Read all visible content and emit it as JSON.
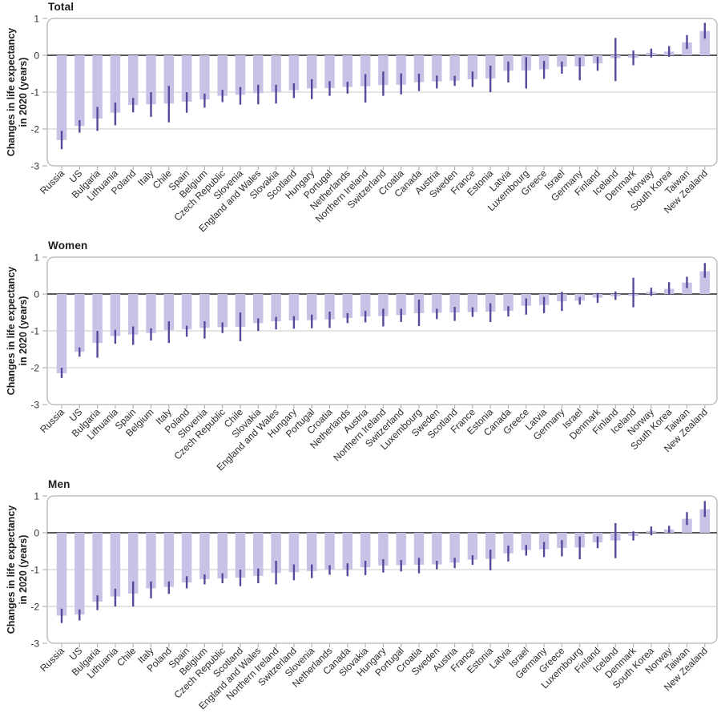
{
  "axis": {
    "ylabel": "Changes in life expectancy\nin 2020 (years)",
    "ytick_labels": [
      "1",
      "0",
      "-1",
      "-2",
      "-3"
    ],
    "ytick_values": [
      1,
      0,
      -1,
      -2,
      -3
    ],
    "ylim": [
      -3,
      1
    ]
  },
  "colors": {
    "bar": "#c8c3e6",
    "error_bar": "#544a9c",
    "zero_line": "#58585c",
    "gridline": "#cacaca",
    "frame": "#b4b4b4",
    "tick_text": "#333333",
    "label_text": "#2b2b2b",
    "title_text": "#1d1d1f",
    "background": "#ffffff"
  },
  "chart_data": [
    {
      "type": "bar",
      "title": "Total",
      "ylabel": "Changes in life expectancy in 2020 (years)",
      "ylim": [
        -3,
        1
      ],
      "grid": true,
      "legend": false,
      "categories": [
        "Russia",
        "US",
        "Bulgaria",
        "Lithuania",
        "Poland",
        "Italy",
        "Chile",
        "Spain",
        "Belgium",
        "Czech Republic",
        "Slovenia",
        "England and Wales",
        "Slovakia",
        "Scotland",
        "Hungary",
        "Portugal",
        "Netherlands",
        "Northern Ireland",
        "Switzerland",
        "Croatia",
        "Canada",
        "Austria",
        "Sweden",
        "France",
        "Estonia",
        "Latvia",
        "Luxembourg",
        "Greece",
        "Israel",
        "Germany",
        "Finland",
        "Iceland",
        "Denmark",
        "Norway",
        "South Korea",
        "Taiwan",
        "New Zealand"
      ],
      "values": [
        -2.3,
        -1.92,
        -1.72,
        -1.56,
        -1.35,
        -1.33,
        -1.31,
        -1.26,
        -1.2,
        -1.1,
        -1.07,
        -1.03,
        -1.0,
        -0.95,
        -0.9,
        -0.89,
        -0.86,
        -0.84,
        -0.81,
        -0.8,
        -0.73,
        -0.71,
        -0.69,
        -0.65,
        -0.63,
        -0.42,
        -0.41,
        -0.38,
        -0.31,
        -0.3,
        -0.22,
        -0.08,
        -0.07,
        0.07,
        0.1,
        0.35,
        0.66
      ],
      "ci_upper": [
        -2.05,
        -1.76,
        -1.4,
        -1.28,
        -1.16,
        -1.0,
        -0.83,
        -1.0,
        -1.04,
        -0.94,
        -0.86,
        -0.8,
        -0.8,
        -0.76,
        -0.65,
        -0.7,
        -0.72,
        -0.51,
        -0.44,
        -0.49,
        -0.5,
        -0.55,
        -0.56,
        -0.44,
        -0.28,
        -0.17,
        -0.05,
        -0.15,
        -0.17,
        -0.06,
        -0.04,
        0.47,
        0.13,
        0.18,
        0.25,
        0.55,
        0.88
      ],
      "ci_lower": [
        -2.55,
        -2.1,
        -2.05,
        -1.9,
        -1.55,
        -1.67,
        -1.82,
        -1.56,
        -1.42,
        -1.27,
        -1.34,
        -1.33,
        -1.31,
        -1.16,
        -1.19,
        -1.1,
        -1.04,
        -1.28,
        -1.1,
        -1.06,
        -0.97,
        -0.9,
        -0.83,
        -0.86,
        -1.0,
        -0.74,
        -0.9,
        -0.64,
        -0.5,
        -0.68,
        -0.42,
        -0.7,
        -0.27,
        -0.06,
        -0.04,
        0.17,
        0.45
      ]
    },
    {
      "type": "bar",
      "title": "Women",
      "ylabel": "Changes in life expectancy in 2020 (years)",
      "ylim": [
        -3,
        1
      ],
      "grid": true,
      "legend": false,
      "categories": [
        "Russia",
        "US",
        "Bulgaria",
        "Lithuania",
        "Spain",
        "Belgium",
        "Italy",
        "Poland",
        "Slovenia",
        "Czech Republic",
        "Chile",
        "Slovakia",
        "England and Wales",
        "Hungary",
        "Portugal",
        "Croatia",
        "Netherlands",
        "Austria",
        "Northern Ireland",
        "Switzerland",
        "Luxembourg",
        "Sweden",
        "Scotland",
        "France",
        "Estonia",
        "Canada",
        "Greece",
        "Latvia",
        "Germany",
        "Israel",
        "Denmark",
        "Finland",
        "Iceland",
        "Norway",
        "South Korea",
        "Taiwan",
        "New Zealand"
      ],
      "values": [
        -2.15,
        -1.57,
        -1.33,
        -1.14,
        -1.1,
        -1.06,
        -0.98,
        -0.96,
        -0.92,
        -0.9,
        -0.89,
        -0.79,
        -0.74,
        -0.72,
        -0.71,
        -0.69,
        -0.65,
        -0.61,
        -0.6,
        -0.57,
        -0.52,
        -0.51,
        -0.5,
        -0.49,
        -0.48,
        -0.46,
        -0.32,
        -0.3,
        -0.2,
        -0.18,
        -0.1,
        -0.06,
        -0.05,
        0.06,
        0.14,
        0.31,
        0.62
      ],
      "ci_upper": [
        -2.0,
        -1.45,
        -1.0,
        -0.97,
        -0.88,
        -0.93,
        -0.74,
        -0.86,
        -0.74,
        -0.77,
        -0.5,
        -0.66,
        -0.62,
        -0.6,
        -0.56,
        -0.48,
        -0.52,
        -0.46,
        -0.4,
        -0.4,
        -0.15,
        -0.4,
        -0.35,
        -0.36,
        -0.25,
        -0.33,
        -0.12,
        -0.08,
        0.06,
        -0.08,
        0.03,
        0.07,
        0.44,
        0.17,
        0.32,
        0.47,
        0.84
      ],
      "ci_lower": [
        -2.28,
        -1.7,
        -1.73,
        -1.35,
        -1.38,
        -1.26,
        -1.33,
        -1.16,
        -1.21,
        -1.06,
        -1.28,
        -1.0,
        -0.96,
        -0.94,
        -0.93,
        -0.92,
        -0.79,
        -0.77,
        -0.88,
        -0.76,
        -0.87,
        -0.68,
        -0.73,
        -0.62,
        -0.76,
        -0.61,
        -0.56,
        -0.52,
        -0.46,
        -0.29,
        -0.24,
        -0.16,
        -0.36,
        -0.05,
        -0.01,
        0.16,
        0.44
      ]
    },
    {
      "type": "bar",
      "title": "Men",
      "ylabel": "Changes in life expectancy in 2020 (years)",
      "ylim": [
        -3,
        1
      ],
      "grid": true,
      "legend": false,
      "categories": [
        "Russia",
        "US",
        "Bulgaria",
        "Lithuania",
        "Chile",
        "Italy",
        "Poland",
        "Spain",
        "Belgium",
        "Czech Republic",
        "Scotland",
        "England and Wales",
        "Northern Ireland",
        "Switzerland",
        "Slovenia",
        "Netherlands",
        "Canada",
        "Slovakia",
        "Hungary",
        "Portugal",
        "Croatia",
        "Sweden",
        "Austria",
        "France",
        "Estonia",
        "Latvia",
        "Israel",
        "Germany",
        "Greece",
        "Luxembourg",
        "Finland",
        "Iceland",
        "Denmark",
        "South Korea",
        "Norway",
        "Taiwan",
        "New Zealand"
      ],
      "values": [
        -2.25,
        -2.22,
        -1.87,
        -1.73,
        -1.65,
        -1.51,
        -1.47,
        -1.35,
        -1.26,
        -1.24,
        -1.22,
        -1.17,
        -1.09,
        -1.07,
        -1.04,
        -1.01,
        -1.0,
        -0.94,
        -0.89,
        -0.88,
        -0.87,
        -0.86,
        -0.81,
        -0.73,
        -0.71,
        -0.56,
        -0.47,
        -0.45,
        -0.41,
        -0.4,
        -0.26,
        -0.21,
        -0.09,
        0.05,
        0.09,
        0.38,
        0.64
      ],
      "ci_upper": [
        -2.06,
        -2.08,
        -1.7,
        -1.52,
        -1.32,
        -1.32,
        -1.32,
        -1.18,
        -1.13,
        -1.1,
        -1.0,
        -0.97,
        -0.76,
        -0.86,
        -0.86,
        -0.88,
        -0.83,
        -0.76,
        -0.72,
        -0.74,
        -0.68,
        -0.76,
        -0.68,
        -0.61,
        -0.46,
        -0.35,
        -0.33,
        -0.25,
        -0.2,
        -0.1,
        -0.1,
        0.26,
        0.04,
        0.17,
        0.19,
        0.56,
        0.86
      ],
      "ci_lower": [
        -2.45,
        -2.38,
        -2.1,
        -2.0,
        -2.0,
        -1.78,
        -1.66,
        -1.51,
        -1.4,
        -1.37,
        -1.45,
        -1.37,
        -1.4,
        -1.29,
        -1.23,
        -1.14,
        -1.18,
        -1.15,
        -1.08,
        -1.05,
        -1.1,
        -0.99,
        -0.96,
        -0.87,
        -1.02,
        -0.78,
        -0.62,
        -0.66,
        -0.64,
        -0.72,
        -0.42,
        -0.69,
        -0.21,
        -0.07,
        0.0,
        0.21,
        0.43
      ]
    }
  ]
}
